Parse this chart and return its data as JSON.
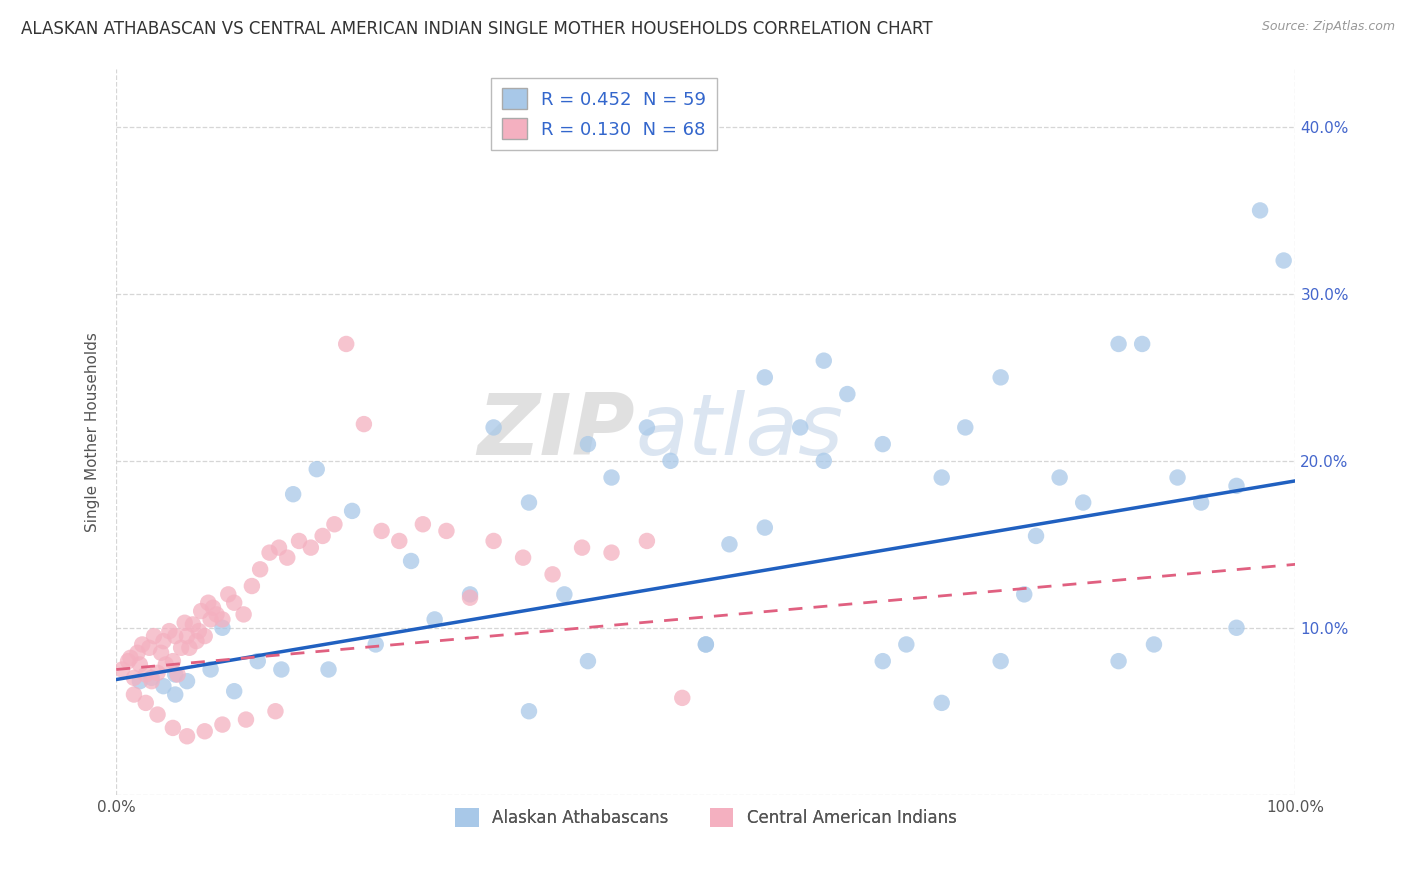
{
  "title": "ALASKAN ATHABASCAN VS CENTRAL AMERICAN INDIAN SINGLE MOTHER HOUSEHOLDS CORRELATION CHART",
  "source": "Source: ZipAtlas.com",
  "ylabel": "Single Mother Households",
  "xlim": [
    0.0,
    1.0
  ],
  "ylim": [
    0.0,
    0.435
  ],
  "yticks": [
    0.0,
    0.1,
    0.2,
    0.3,
    0.4
  ],
  "ytick_labels_left": [
    "",
    "",
    "",
    "",
    ""
  ],
  "ytick_labels_right": [
    "",
    "10.0%",
    "20.0%",
    "30.0%",
    "40.0%"
  ],
  "xticks": [
    0.0,
    1.0
  ],
  "xtick_labels": [
    "0.0%",
    "100.0%"
  ],
  "r_blue": 0.452,
  "n_blue": 59,
  "r_pink": 0.13,
  "n_pink": 68,
  "dot_color_blue": "#a8c8e8",
  "dot_color_pink": "#f4b0c0",
  "line_color_blue": "#2060c0",
  "line_color_pink": "#e06080",
  "legend_label_blue": "R = 0.452  N = 59",
  "legend_label_pink": "R = 0.130  N = 68",
  "legend_group_blue": "Alaskan Athabascans",
  "legend_group_pink": "Central American Indians",
  "title_fontsize": 12,
  "axis_label_fontsize": 11,
  "tick_fontsize": 11,
  "background_color": "#ffffff",
  "grid_color": "#cccccc",
  "blue_line_start_y": 0.069,
  "blue_line_end_y": 0.188,
  "pink_line_start_y": 0.075,
  "pink_line_end_y": 0.138
}
